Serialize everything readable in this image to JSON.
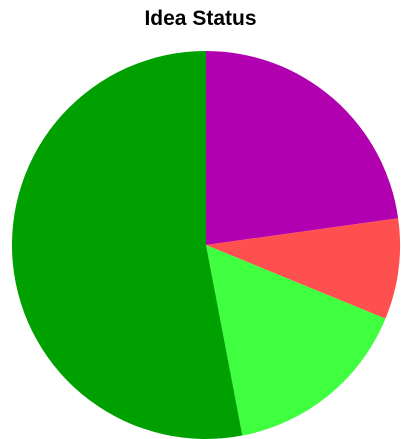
{
  "chart_data": {
    "type": "pie",
    "title": "Idea Status",
    "start_angle_deg": 0,
    "direction": "clockwise",
    "slices": [
      {
        "value": 22.8,
        "color": "#b000b0"
      },
      {
        "value": 8.4,
        "color": "#ff5050"
      },
      {
        "value": 15.8,
        "color": "#40ff40"
      },
      {
        "value": 53.0,
        "color": "#00a000"
      }
    ]
  }
}
